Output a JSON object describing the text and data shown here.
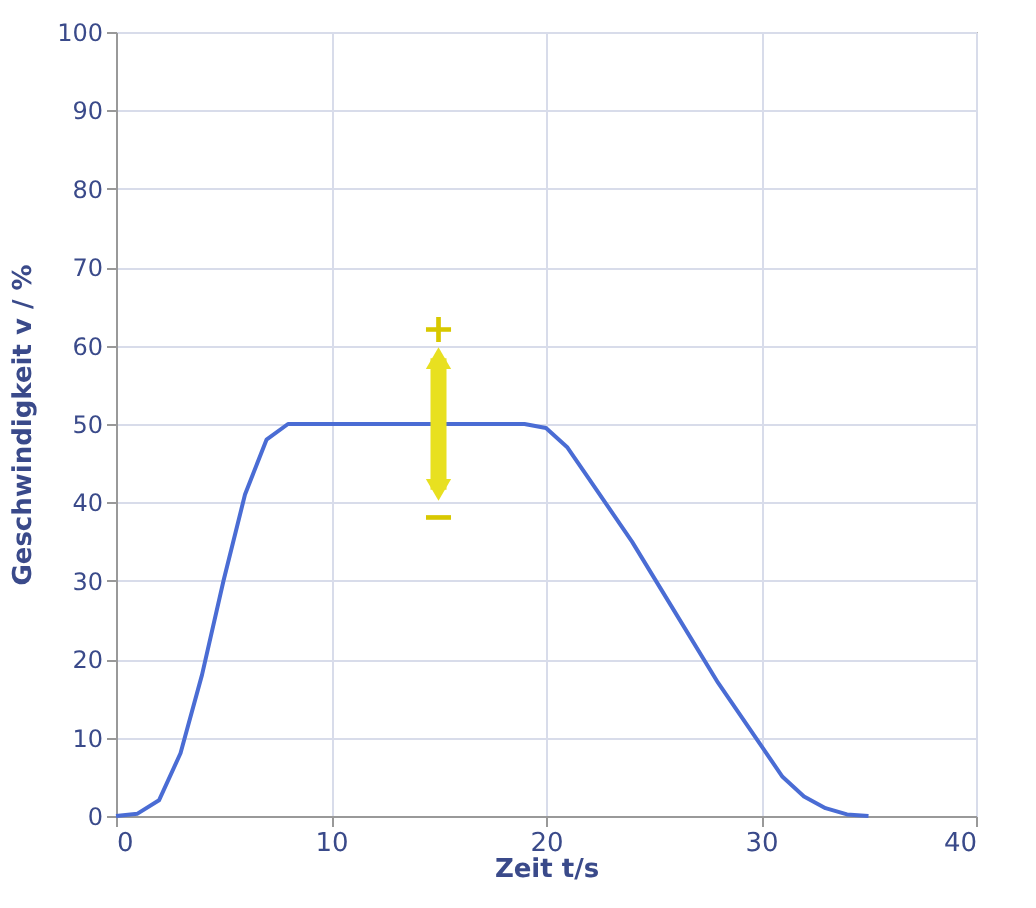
{
  "chart_data": {
    "type": "line",
    "xlabel": "Zeit t/s",
    "ylabel": "Geschwindigkeit v / %",
    "x": [
      0,
      1,
      2,
      3,
      4,
      5,
      6,
      7,
      8,
      19,
      20,
      21,
      22,
      24,
      26,
      28,
      30,
      31,
      32,
      33,
      34,
      35
    ],
    "series": [
      {
        "color": "#4a6cd4",
        "values": [
          0,
          0.3,
          2,
          8,
          18,
          30,
          41,
          48,
          50,
          50,
          49.5,
          47,
          43,
          35,
          26,
          17,
          9,
          5,
          2.5,
          1,
          0.2,
          0
        ]
      }
    ],
    "xlim": [
      0,
      40
    ],
    "xticks": [
      0,
      10,
      20,
      30,
      40
    ],
    "ylim": [
      0,
      100
    ],
    "yticks": [
      0,
      10,
      20,
      30,
      40,
      50,
      60,
      70,
      80,
      90,
      100
    ],
    "grid": true,
    "line_style": "solid",
    "marker": "none",
    "annotations": [
      "+",
      "−"
    ]
  }
}
